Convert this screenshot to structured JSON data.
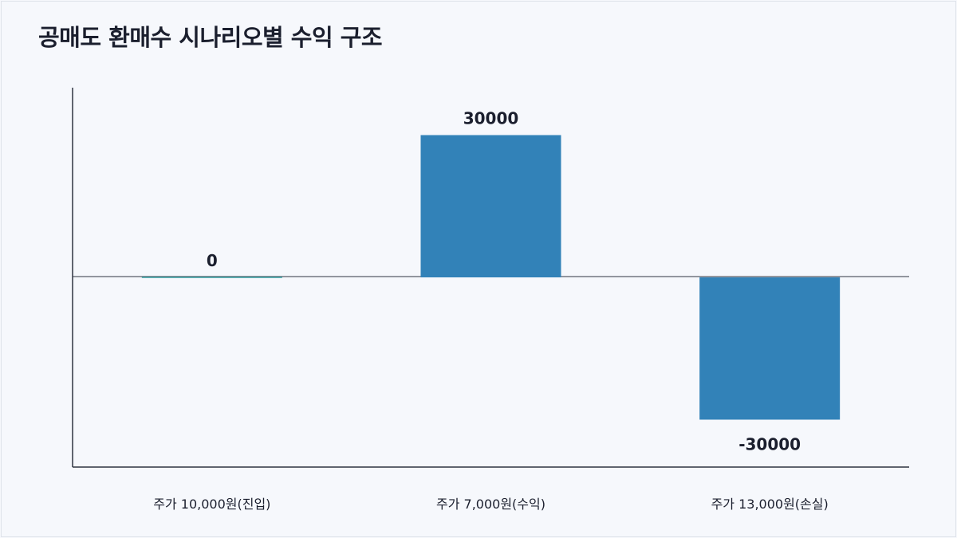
{
  "chart_data": {
    "type": "bar",
    "title": "공매도 환매수 시나리오별 수익 구조",
    "categories": [
      "주가 10,000원(진입)",
      "주가 7,000원(수익)",
      "주가 13,000원(손실)"
    ],
    "values": [
      0,
      30000,
      -30000
    ],
    "value_labels": [
      "0",
      "30000",
      "-30000"
    ],
    "ylim": [
      -40000,
      40000
    ],
    "xlabel": "",
    "ylabel": "",
    "grid": false,
    "bar_color": "#3282b8",
    "zero_bar_color": "#38a3a5",
    "axis_color": "#2e3440",
    "text_color": "#1b1f2e"
  }
}
